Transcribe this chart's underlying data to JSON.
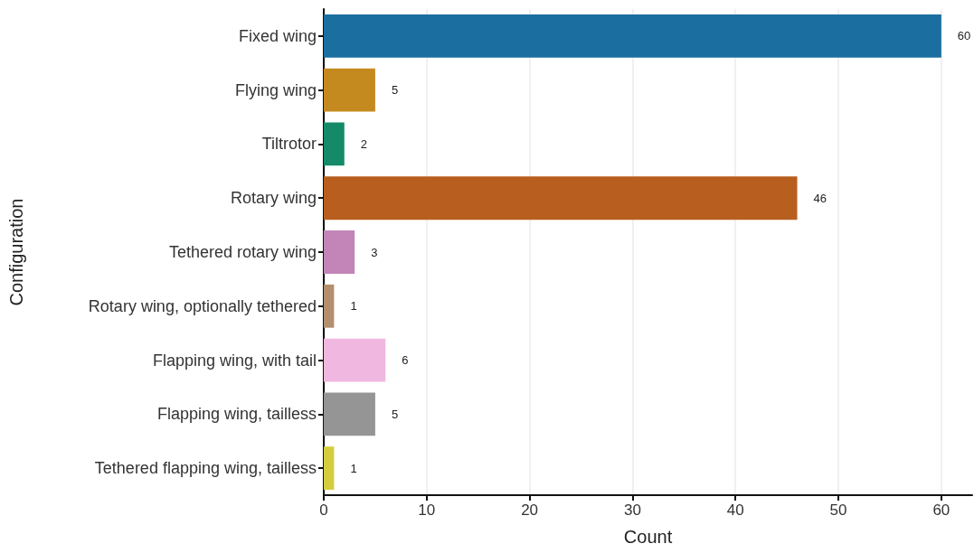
{
  "chart_data": {
    "type": "bar",
    "orientation": "horizontal",
    "xlabel": "Count",
    "ylabel": "Configuration",
    "categories": [
      "Fixed wing",
      "Flying wing",
      "Tiltrotor",
      "Rotary wing",
      "Tethered rotary wing",
      "Rotary wing, optionally tethered",
      "Flapping wing, with tail",
      "Flapping wing, tailless",
      "Tethered flapping wing, tailless"
    ],
    "values": [
      60,
      5,
      2,
      46,
      3,
      1,
      6,
      5,
      1
    ],
    "colors": [
      "#1a6fa0",
      "#c58a1f",
      "#148a68",
      "#b85e1e",
      "#c385b8",
      "#b48f6e",
      "#f0b8e0",
      "#959595",
      "#d4cd3e"
    ],
    "xlim": [
      0,
      63
    ],
    "xticks": [
      0,
      10,
      20,
      30,
      40,
      50,
      60
    ],
    "grid": "x",
    "data_labels": true
  }
}
